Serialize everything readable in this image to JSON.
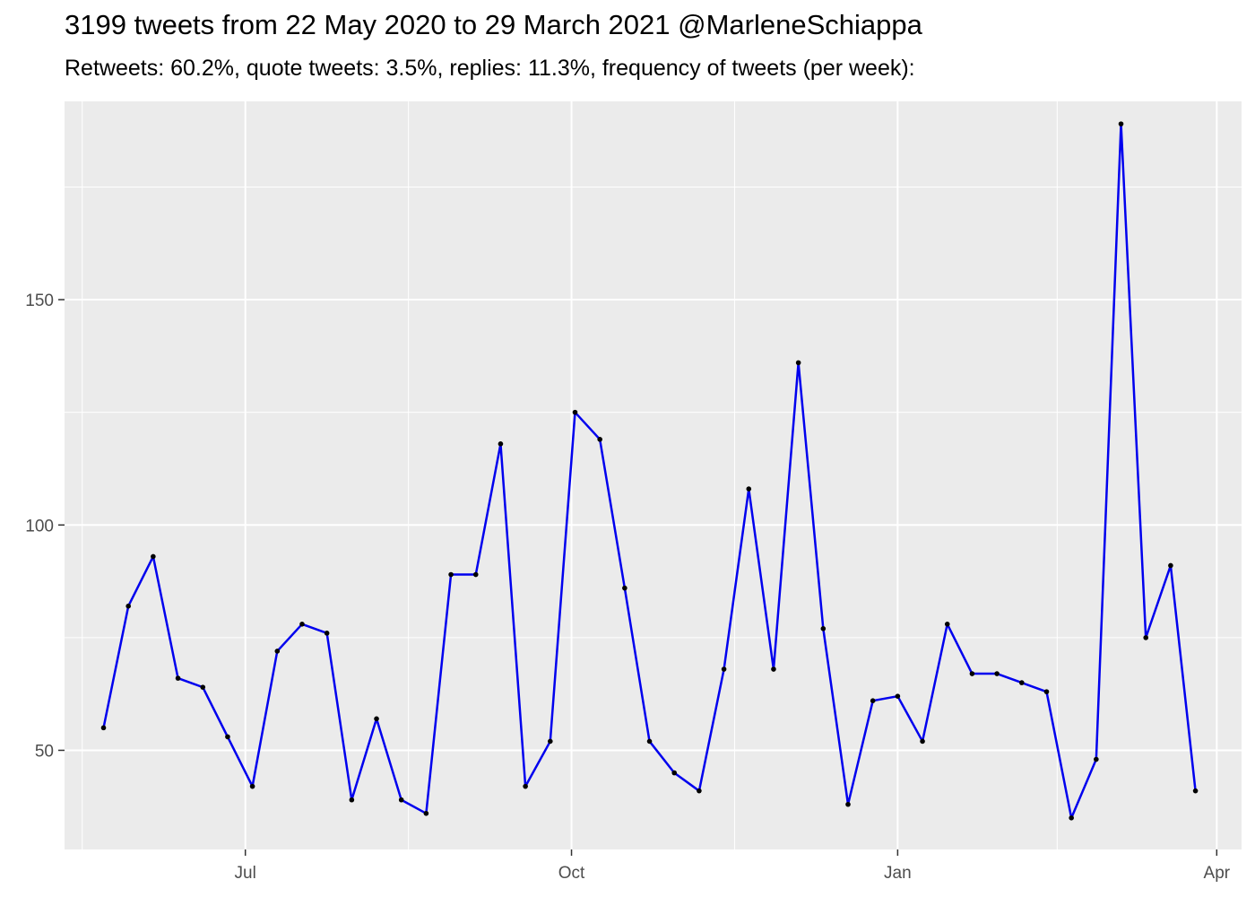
{
  "chart_data": {
    "type": "line",
    "title": "3199 tweets from 22 May 2020 to 29 March 2021 @MarleneSchiappa",
    "subtitle": "Retweets: 60.2%, quote tweets: 3.5%, replies: 11.3%, frequency of tweets (per week):",
    "xlabel": "",
    "ylabel": "",
    "x_tick_labels": [
      "Jul",
      "Oct",
      "Jan",
      "Apr"
    ],
    "x_tick_dates": [
      "2020-07-01",
      "2020-10-01",
      "2021-01-01",
      "2021-04-01"
    ],
    "y_tick_values": [
      50,
      100,
      150
    ],
    "y_tick_labels": [
      "50",
      "100",
      "150"
    ],
    "xlim": [
      "2020-05-11",
      "2021-04-08"
    ],
    "ylim": [
      28,
      194
    ],
    "grid": true,
    "panel_background": "#ebebeb",
    "grid_color": "#ffffff",
    "line_color": "#0000ee",
    "point_color": "#000000",
    "series": [
      {
        "x": [
          "2020-05-22",
          "2020-05-29",
          "2020-06-05",
          "2020-06-12",
          "2020-06-19",
          "2020-06-26",
          "2020-07-03",
          "2020-07-10",
          "2020-07-17",
          "2020-07-24",
          "2020-07-31",
          "2020-08-07",
          "2020-08-14",
          "2020-08-21",
          "2020-08-28",
          "2020-09-04",
          "2020-09-11",
          "2020-09-18",
          "2020-09-25",
          "2020-10-02",
          "2020-10-09",
          "2020-10-16",
          "2020-10-23",
          "2020-10-30",
          "2020-11-06",
          "2020-11-13",
          "2020-11-20",
          "2020-11-27",
          "2020-12-04",
          "2020-12-11",
          "2020-12-18",
          "2020-12-25",
          "2021-01-01",
          "2021-01-08",
          "2021-01-15",
          "2021-01-22",
          "2021-01-29",
          "2021-02-05",
          "2021-02-12",
          "2021-02-19",
          "2021-02-26",
          "2021-03-05",
          "2021-03-12",
          "2021-03-19",
          "2021-03-26"
        ],
        "values": [
          55,
          82,
          93,
          66,
          64,
          53,
          42,
          72,
          78,
          76,
          39,
          57,
          39,
          36,
          89,
          89,
          118,
          42,
          52,
          125,
          119,
          86,
          52,
          45,
          41,
          68,
          108,
          68,
          136,
          77,
          38,
          61,
          62,
          52,
          78,
          67,
          67,
          65,
          63,
          35,
          48,
          189,
          75,
          91,
          41
        ]
      }
    ]
  }
}
